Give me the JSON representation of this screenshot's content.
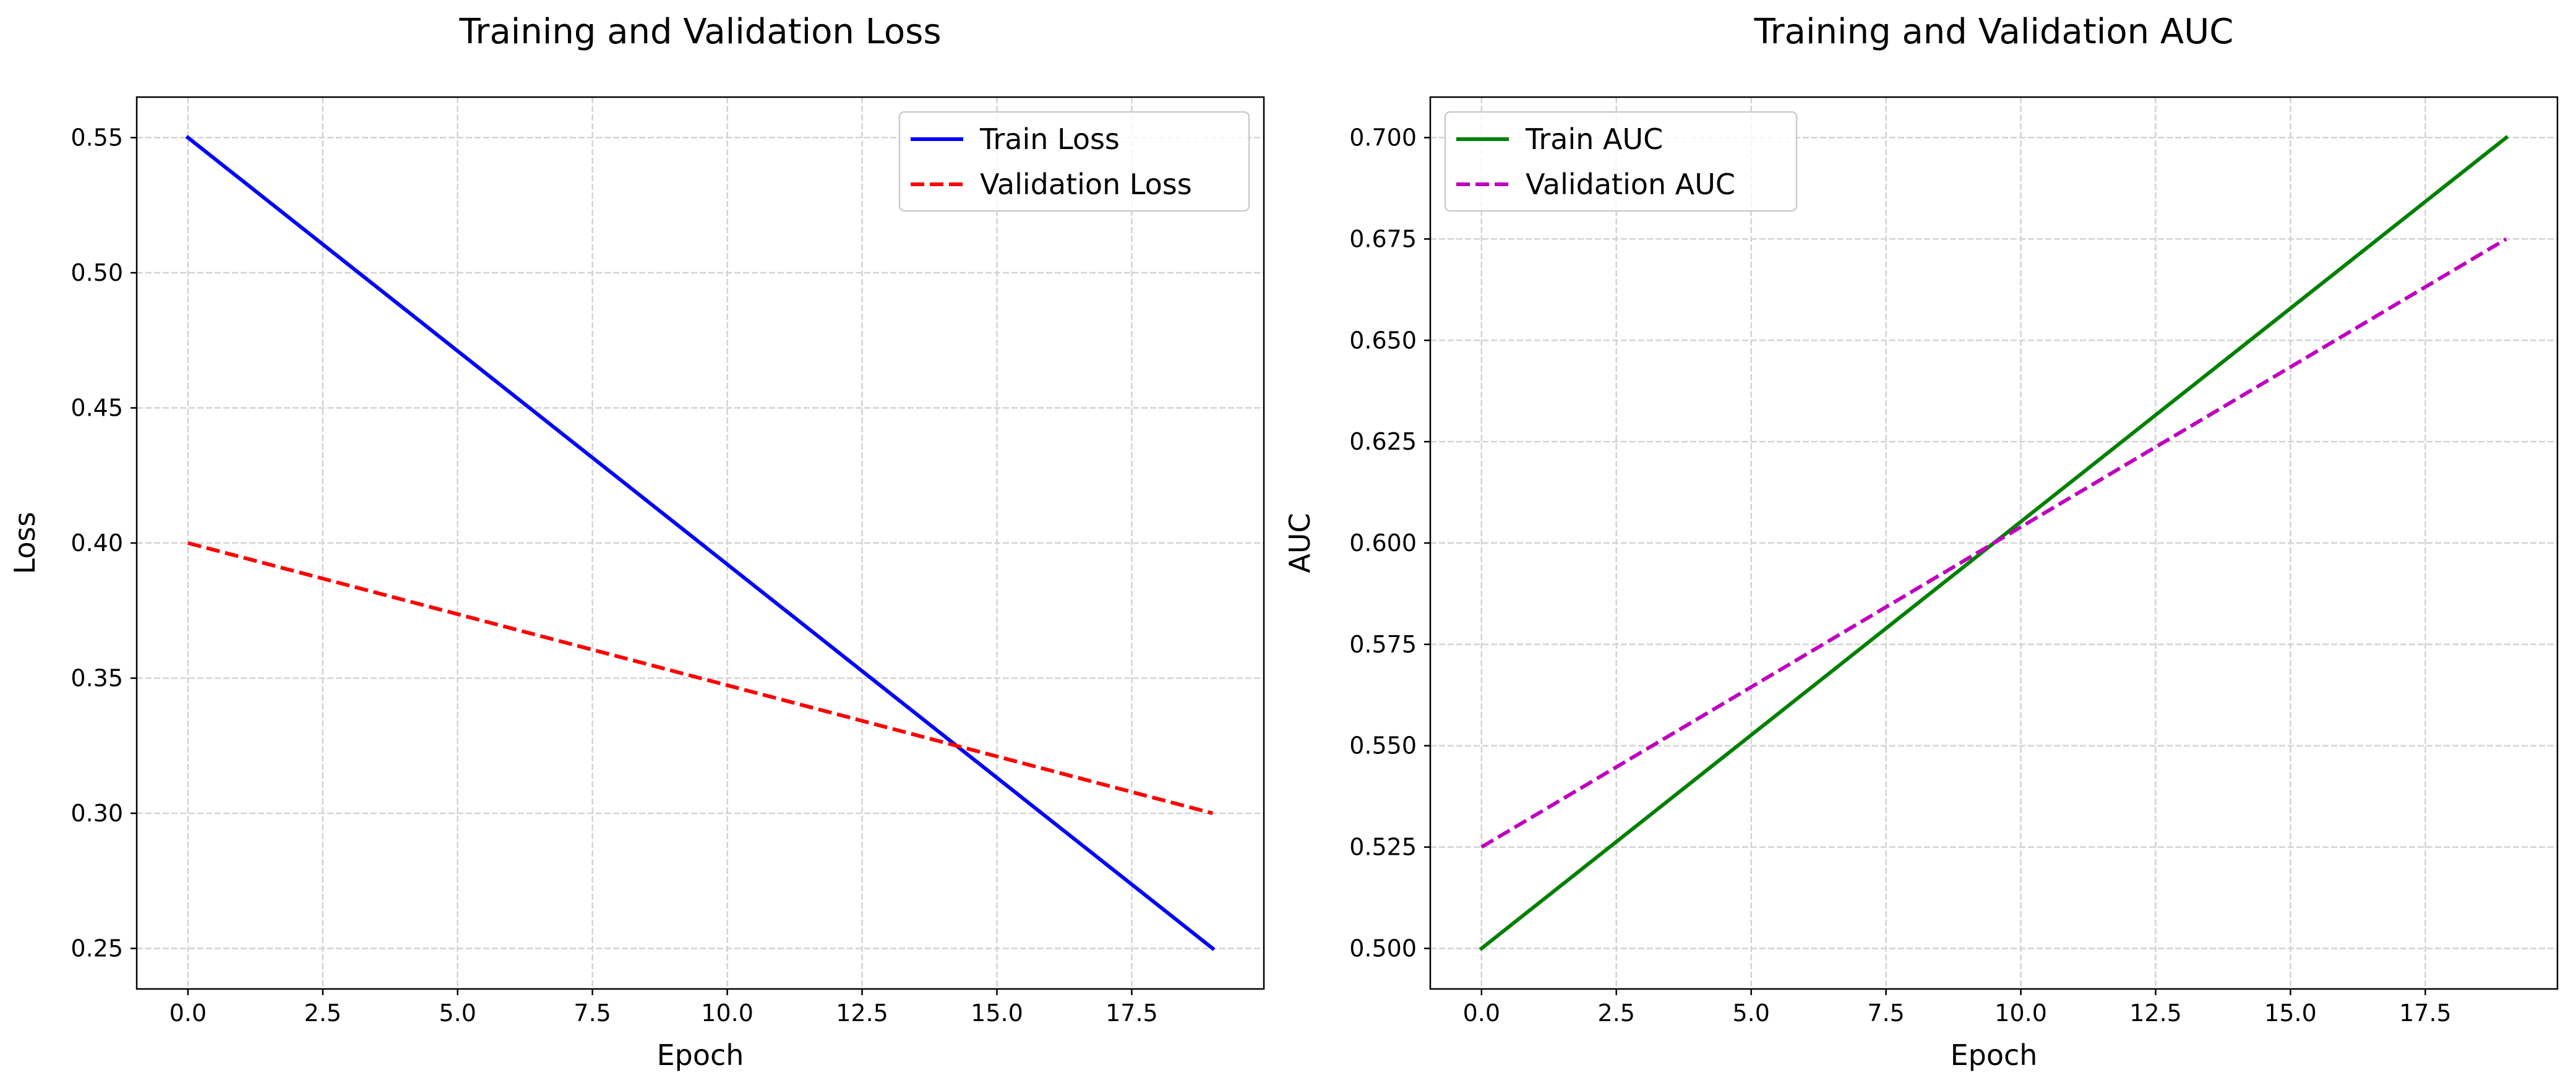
{
  "chart_data": [
    {
      "type": "line",
      "title": "Training and Validation Loss",
      "xlabel": "Epoch",
      "ylabel": "Loss",
      "xlim": [
        -0.95,
        19.95
      ],
      "ylim": [
        0.235,
        0.565
      ],
      "xticks": [
        0,
        2.5,
        5,
        7.5,
        10,
        12.5,
        15,
        17.5
      ],
      "xtick_labels": [
        "0.0",
        "2.5",
        "5.0",
        "7.5",
        "10.0",
        "12.5",
        "15.0",
        "17.5"
      ],
      "yticks": [
        0.25,
        0.3,
        0.35,
        0.4,
        0.45,
        0.5,
        0.55
      ],
      "ytick_labels": [
        "0.25",
        "0.30",
        "0.35",
        "0.40",
        "0.45",
        "0.50",
        "0.55"
      ],
      "grid": true,
      "legend_position": "upper right",
      "series": [
        {
          "name": "Train Loss",
          "color": "#0000ff",
          "linestyle": "solid",
          "x": [
            0,
            19
          ],
          "y": [
            0.55,
            0.25
          ]
        },
        {
          "name": "Validation Loss",
          "color": "#ff0000",
          "linestyle": "dashed",
          "x": [
            0,
            19
          ],
          "y": [
            0.4,
            0.3
          ]
        }
      ]
    },
    {
      "type": "line",
      "title": "Training and Validation AUC",
      "xlabel": "Epoch",
      "ylabel": "AUC",
      "xlim": [
        -0.95,
        19.95
      ],
      "ylim": [
        0.49,
        0.71
      ],
      "xticks": [
        0,
        2.5,
        5,
        7.5,
        10,
        12.5,
        15,
        17.5
      ],
      "xtick_labels": [
        "0.0",
        "2.5",
        "5.0",
        "7.5",
        "10.0",
        "12.5",
        "15.0",
        "17.5"
      ],
      "yticks": [
        0.5,
        0.525,
        0.55,
        0.575,
        0.6,
        0.625,
        0.65,
        0.675,
        0.7
      ],
      "ytick_labels": [
        "0.500",
        "0.525",
        "0.550",
        "0.575",
        "0.600",
        "0.625",
        "0.650",
        "0.675",
        "0.700"
      ],
      "grid": true,
      "legend_position": "upper left",
      "series": [
        {
          "name": "Train AUC",
          "color": "#008000",
          "linestyle": "solid",
          "x": [
            0,
            19
          ],
          "y": [
            0.5,
            0.7
          ]
        },
        {
          "name": "Validation AUC",
          "color": "#bf00bf",
          "linestyle": "dashed",
          "x": [
            0,
            19
          ],
          "y": [
            0.525,
            0.675
          ]
        }
      ]
    }
  ]
}
